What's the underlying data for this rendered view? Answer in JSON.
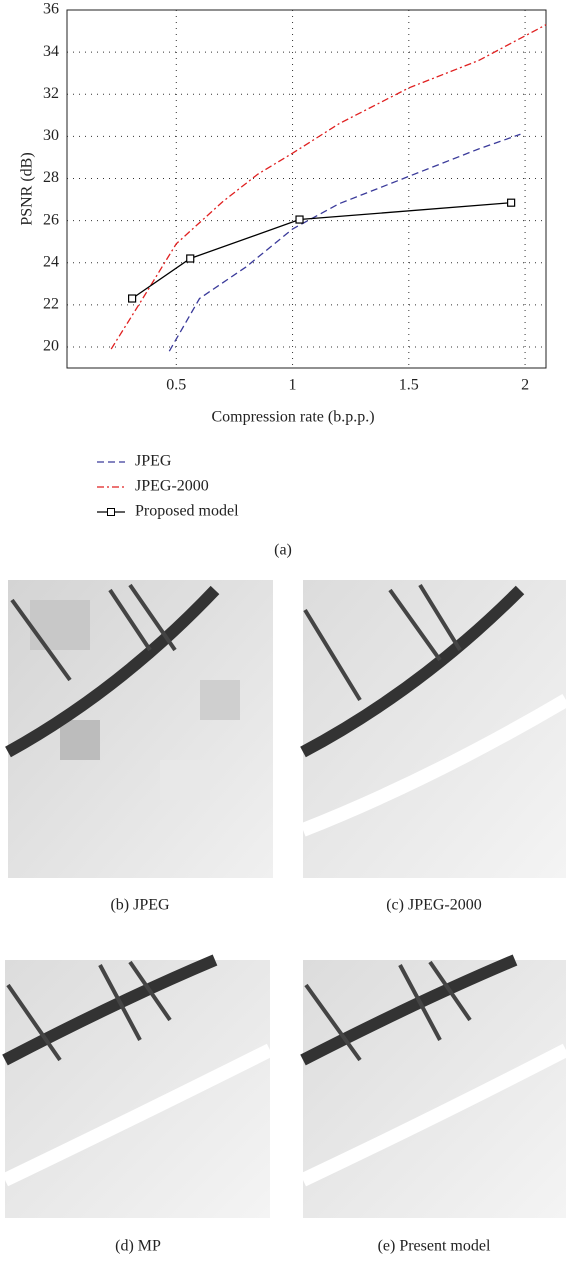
{
  "chart_data": {
    "type": "line",
    "xlabel": "Compression rate (b.p.p.)",
    "ylabel": "PSNR (dB)",
    "xlim": [
      0.03,
      2.09
    ],
    "ylim": [
      19,
      36
    ],
    "xticks": [
      0.5,
      1,
      1.5,
      2
    ],
    "yticks": [
      20,
      22,
      24,
      26,
      28,
      30,
      32,
      34,
      36
    ],
    "grid": true,
    "legend": "below",
    "series": [
      {
        "name": "JPEG",
        "color": "#3a3a9a",
        "dash": "dashed",
        "marker": "none",
        "x": [
          0.47,
          0.6,
          0.8,
          1.0,
          1.2,
          1.5,
          1.8,
          1.98
        ],
        "values": [
          19.8,
          22.3,
          23.8,
          25.6,
          26.8,
          28.1,
          29.4,
          30.1
        ]
      },
      {
        "name": "JPEG-2000",
        "color": "#e02020",
        "dash": "dashdot",
        "marker": "none",
        "x": [
          0.22,
          0.35,
          0.5,
          0.7,
          0.85,
          1.0,
          1.2,
          1.5,
          1.8,
          2.09
        ],
        "values": [
          19.9,
          22.2,
          24.9,
          26.9,
          28.2,
          29.2,
          30.6,
          32.3,
          33.6,
          35.3
        ]
      },
      {
        "name": "Proposed model",
        "color": "#000000",
        "dash": "solid",
        "marker": "square",
        "x": [
          0.31,
          0.56,
          1.03,
          1.94
        ],
        "values": [
          22.3,
          24.2,
          26.05,
          26.85
        ]
      }
    ]
  },
  "figure": {
    "caption": "(a)",
    "panels": [
      {
        "caption": "(b) JPEG"
      },
      {
        "caption": "(c) JPEG-2000"
      },
      {
        "caption": "(d) MP"
      },
      {
        "caption": "(e) Present model"
      }
    ]
  }
}
